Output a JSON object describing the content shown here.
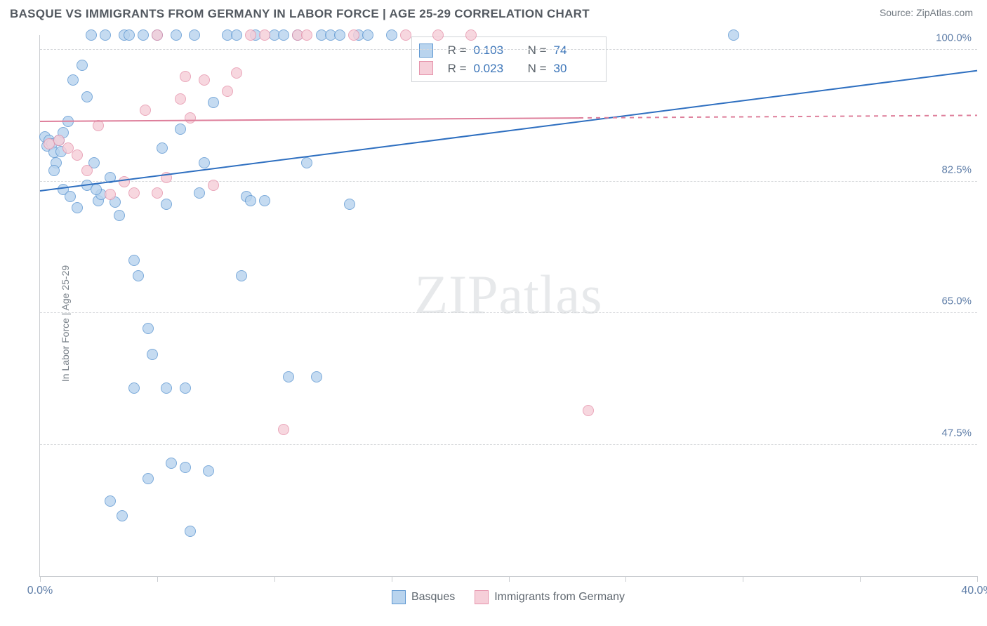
{
  "title": "BASQUE VS IMMIGRANTS FROM GERMANY IN LABOR FORCE | AGE 25-29 CORRELATION CHART",
  "source_label": "Source: ZipAtlas.com",
  "watermark": {
    "bold": "ZIP",
    "light": "atlas"
  },
  "yaxis_label": "In Labor Force | Age 25-29",
  "chart": {
    "type": "scatter",
    "background_color": "#ffffff",
    "grid_color": "#d6d8db",
    "axis_color": "#c9ccd0",
    "text_color": "#5f7ea8",
    "xlim": [
      0,
      40
    ],
    "ylim": [
      30,
      102
    ],
    "xticks": [
      0,
      5,
      10,
      15,
      20,
      25,
      30,
      35,
      40
    ],
    "xtick_labels": {
      "0": "0.0%",
      "40": "40.0%"
    },
    "yticks": [
      47.5,
      65.0,
      82.5,
      100.0
    ],
    "ytick_labels": [
      "47.5%",
      "65.0%",
      "82.5%",
      "100.0%"
    ],
    "marker_radius": 8,
    "marker_border_width": 1.4,
    "series": [
      {
        "name": "Basques",
        "fill": "#b9d4ee",
        "stroke": "#5f98d2",
        "R": "0.103",
        "N": "74",
        "trend": {
          "x1": 0,
          "y1": 81.2,
          "x2": 40,
          "y2": 97.2,
          "color": "#2e6fc0",
          "width": 2.2,
          "dash_after_x": null
        },
        "points": [
          [
            0.2,
            88.5
          ],
          [
            0.3,
            87.2
          ],
          [
            0.4,
            88.0
          ],
          [
            0.5,
            87.5
          ],
          [
            0.6,
            86.4
          ],
          [
            0.7,
            85.0
          ],
          [
            0.8,
            88.0
          ],
          [
            0.9,
            86.5
          ],
          [
            1.0,
            89.0
          ],
          [
            1.2,
            90.5
          ],
          [
            1.4,
            96.0
          ],
          [
            1.6,
            79.0
          ],
          [
            1.8,
            98.0
          ],
          [
            2.0,
            93.8
          ],
          [
            2.2,
            102.0
          ],
          [
            2.3,
            85.0
          ],
          [
            2.5,
            80.0
          ],
          [
            2.6,
            80.8
          ],
          [
            2.8,
            102.0
          ],
          [
            3.0,
            83.0
          ],
          [
            3.2,
            79.8
          ],
          [
            3.4,
            78.0
          ],
          [
            3.6,
            102.0
          ],
          [
            3.8,
            102.0
          ],
          [
            4.0,
            72.0
          ],
          [
            4.2,
            70.0
          ],
          [
            4.4,
            102.0
          ],
          [
            4.6,
            63.0
          ],
          [
            4.6,
            43.0
          ],
          [
            4.8,
            59.5
          ],
          [
            5.0,
            102.0
          ],
          [
            5.2,
            87.0
          ],
          [
            5.4,
            79.5
          ],
          [
            5.6,
            45.0
          ],
          [
            5.8,
            102.0
          ],
          [
            6.0,
            89.5
          ],
          [
            6.2,
            55.0
          ],
          [
            6.2,
            44.5
          ],
          [
            6.4,
            36.0
          ],
          [
            6.6,
            102.0
          ],
          [
            6.8,
            81.0
          ],
          [
            7.0,
            85.0
          ],
          [
            7.2,
            44.0
          ],
          [
            7.4,
            93.0
          ],
          [
            8.0,
            102.0
          ],
          [
            8.4,
            102.0
          ],
          [
            8.6,
            70.0
          ],
          [
            8.8,
            80.5
          ],
          [
            9.0,
            80.0
          ],
          [
            9.2,
            102.0
          ],
          [
            9.6,
            80.0
          ],
          [
            10.0,
            102.0
          ],
          [
            10.4,
            102.0
          ],
          [
            10.6,
            56.5
          ],
          [
            11.0,
            102.0
          ],
          [
            11.4,
            85.0
          ],
          [
            11.8,
            56.5
          ],
          [
            12.0,
            102.0
          ],
          [
            12.4,
            102.0
          ],
          [
            12.8,
            102.0
          ],
          [
            13.2,
            79.5
          ],
          [
            13.6,
            102.0
          ],
          [
            14.0,
            102.0
          ],
          [
            15.0,
            102.0
          ],
          [
            29.6,
            102.0
          ],
          [
            3.5,
            38.0
          ],
          [
            2.0,
            82.0
          ],
          [
            2.4,
            81.5
          ],
          [
            1.0,
            81.5
          ],
          [
            1.3,
            80.5
          ],
          [
            0.6,
            84.0
          ],
          [
            4.0,
            55.0
          ],
          [
            5.4,
            55.0
          ],
          [
            3.0,
            40.0
          ]
        ]
      },
      {
        "name": "Immigrants from Germany",
        "fill": "#f6cfd9",
        "stroke": "#e694ac",
        "R": "0.023",
        "N": "30",
        "trend": {
          "x1": 0,
          "y1": 90.4,
          "x2": 40,
          "y2": 91.2,
          "color": "#de7f9b",
          "width": 2.0,
          "dash_after_x": 23
        },
        "points": [
          [
            0.4,
            87.5
          ],
          [
            0.8,
            88.0
          ],
          [
            1.2,
            87.0
          ],
          [
            1.6,
            86.0
          ],
          [
            2.0,
            84.0
          ],
          [
            2.5,
            90.0
          ],
          [
            3.0,
            80.8
          ],
          [
            3.6,
            82.5
          ],
          [
            4.0,
            81.0
          ],
          [
            4.5,
            92.0
          ],
          [
            5.0,
            81.0
          ],
          [
            5.0,
            102.0
          ],
          [
            5.4,
            83.0
          ],
          [
            6.0,
            93.5
          ],
          [
            6.2,
            96.5
          ],
          [
            6.4,
            91.0
          ],
          [
            7.0,
            96.0
          ],
          [
            7.4,
            82.0
          ],
          [
            8.0,
            94.5
          ],
          [
            8.4,
            97.0
          ],
          [
            9.0,
            102.0
          ],
          [
            9.6,
            102.0
          ],
          [
            10.4,
            49.5
          ],
          [
            11.0,
            102.0
          ],
          [
            11.4,
            102.0
          ],
          [
            13.4,
            102.0
          ],
          [
            15.6,
            102.0
          ],
          [
            17.0,
            102.0
          ],
          [
            18.4,
            102.0
          ],
          [
            23.4,
            52.0
          ]
        ]
      }
    ]
  },
  "stats_box": {
    "rows": [
      {
        "swatch_fill": "#b9d4ee",
        "swatch_stroke": "#5f98d2",
        "r_label": "R =",
        "r_val": "0.103",
        "n_label": "N =",
        "n_val": "74"
      },
      {
        "swatch_fill": "#f6cfd9",
        "swatch_stroke": "#e694ac",
        "r_label": "R =",
        "r_val": "0.023",
        "n_label": "N =",
        "n_val": "30"
      }
    ],
    "val_color": "#3a74b8",
    "label_color": "#5a626a"
  },
  "legend": [
    {
      "swatch_fill": "#b9d4ee",
      "swatch_stroke": "#5f98d2",
      "label": "Basques"
    },
    {
      "swatch_fill": "#f6cfd9",
      "swatch_stroke": "#e694ac",
      "label": "Immigrants from Germany"
    }
  ]
}
